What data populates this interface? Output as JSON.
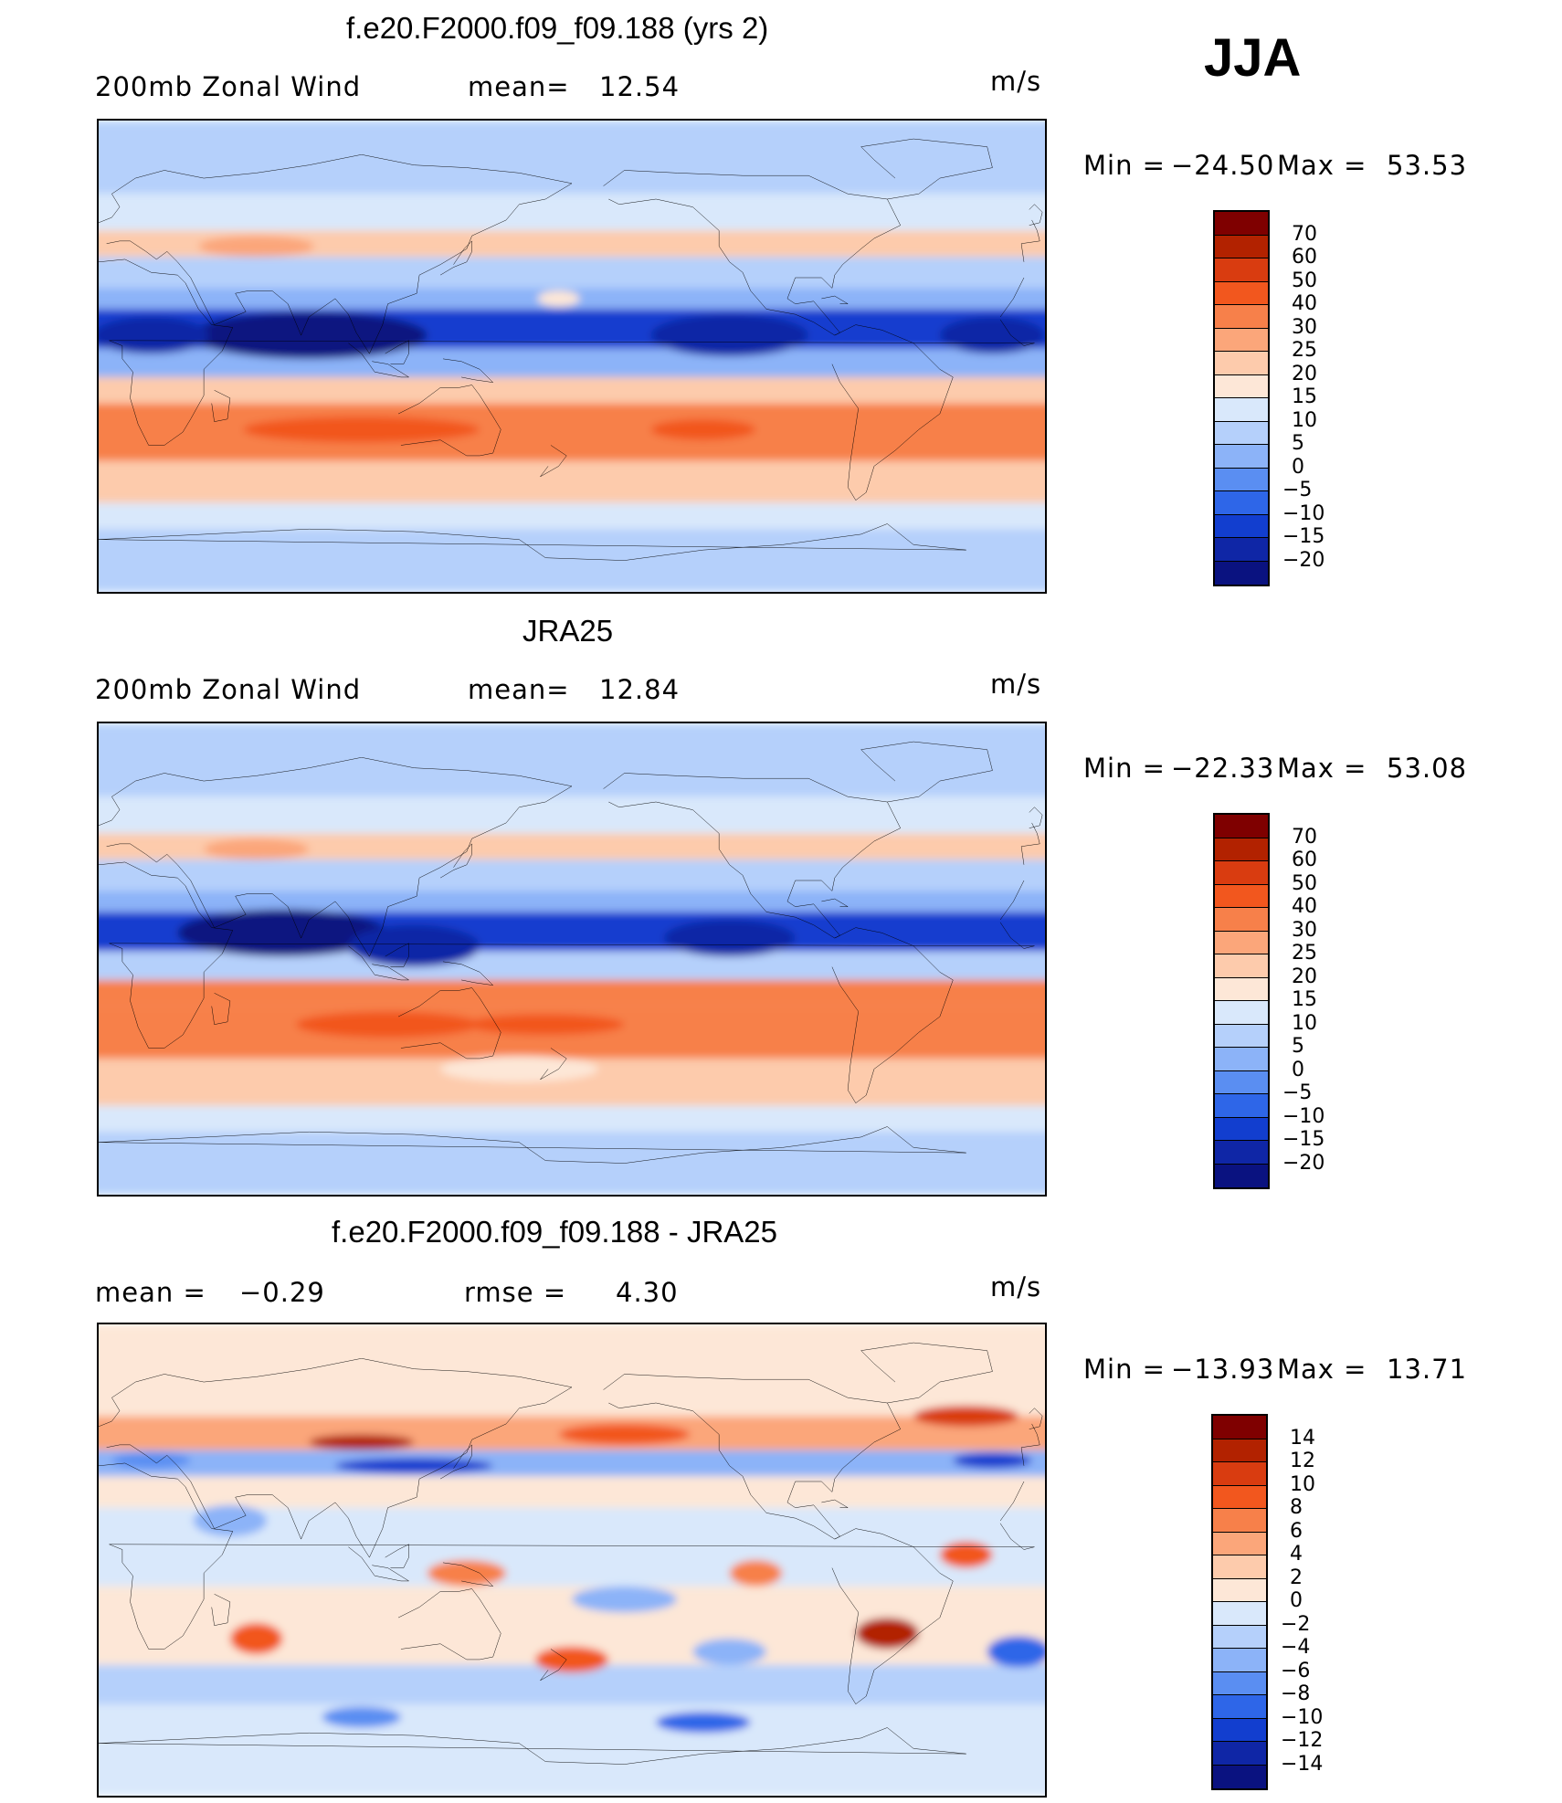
{
  "season": "JJA",
  "units": "m/s",
  "panels": [
    {
      "id": "model",
      "title": "f.e20.F2000.f09_f09.188 (yrs 2)",
      "left_label": "200mb  Zonal  Wind",
      "stat_label": "mean=",
      "stat_value": "12.54",
      "minmax": {
        "min_label": "Min  =",
        "min": "−24.50",
        "max_label": "Max  =",
        "max": "53.53"
      },
      "colorbar": {
        "levels": [
          "70",
          "60",
          "50",
          "40",
          "30",
          "25",
          "20",
          "15",
          "10",
          "5",
          "0",
          "−5",
          "−10",
          "−15",
          "−20"
        ],
        "colors": [
          "#7f0000",
          "#b22200",
          "#d93c10",
          "#f2571e",
          "#f7804a",
          "#fba67a",
          "#fdcbac",
          "#fde7d7",
          "#d9e8fb",
          "#b5d0fb",
          "#8cb3f8",
          "#5a8ef2",
          "#2e66e8",
          "#123ecf",
          "#0f26a6",
          "#0a1280"
        ]
      },
      "field": {
        "type": "zonal_wind",
        "bands": [
          {
            "lat_from": 90,
            "lat_to": 62,
            "value": 8
          },
          {
            "lat_from": 62,
            "lat_to": 48,
            "value": 12
          },
          {
            "lat_from": 48,
            "lat_to": 38,
            "value": 23
          },
          {
            "lat_from": 38,
            "lat_to": 26,
            "value": 9
          },
          {
            "lat_from": 26,
            "lat_to": 18,
            "value": 0
          },
          {
            "lat_from": 18,
            "lat_to": 3,
            "value": -12
          },
          {
            "lat_from": 3,
            "lat_to": -8,
            "value": 4
          },
          {
            "lat_from": -8,
            "lat_to": -18,
            "value": 24
          },
          {
            "lat_from": -18,
            "lat_to": -40,
            "value": 38
          },
          {
            "lat_from": -40,
            "lat_to": -56,
            "value": 23
          },
          {
            "lat_from": -56,
            "lat_to": -66,
            "value": 12
          },
          {
            "lat_from": -66,
            "lat_to": -90,
            "value": 6
          }
        ],
        "features": [
          {
            "lon": 80,
            "lat": 8,
            "rx": 45,
            "ry": 9,
            "value": -22
          },
          {
            "lon": 20,
            "lat": 8,
            "rx": 22,
            "ry": 7,
            "value": -16
          },
          {
            "lon": 240,
            "lat": 8,
            "rx": 30,
            "ry": 8,
            "value": -18
          },
          {
            "lon": 340,
            "lat": 8,
            "rx": 20,
            "ry": 7,
            "value": -18
          },
          {
            "lon": 100,
            "lat": -28,
            "rx": 45,
            "ry": 5,
            "value": 45
          },
          {
            "lon": 230,
            "lat": -28,
            "rx": 20,
            "ry": 4,
            "value": 45
          },
          {
            "lon": 60,
            "lat": 42,
            "rx": 22,
            "ry": 4,
            "value": 28
          },
          {
            "lon": 175,
            "lat": 22,
            "rx": 8,
            "ry": 3,
            "value": 18
          }
        ]
      }
    },
    {
      "id": "obs",
      "title": "JRA25",
      "left_label": "200mb  Zonal  Wind",
      "stat_label": "mean=",
      "stat_value": "12.84",
      "minmax": {
        "min_label": "Min  =",
        "min": "−22.33",
        "max_label": "Max  =",
        "max": "53.08"
      },
      "colorbar": {
        "levels": [
          "70",
          "60",
          "50",
          "40",
          "30",
          "25",
          "20",
          "15",
          "10",
          "5",
          "0",
          "−5",
          "−10",
          "−15",
          "−20"
        ],
        "colors": [
          "#7f0000",
          "#b22200",
          "#d93c10",
          "#f2571e",
          "#f7804a",
          "#fba67a",
          "#fdcbac",
          "#fde7d7",
          "#d9e8fb",
          "#b5d0fb",
          "#8cb3f8",
          "#5a8ef2",
          "#2e66e8",
          "#123ecf",
          "#0f26a6",
          "#0a1280"
        ]
      },
      "field": {
        "type": "zonal_wind",
        "bands": [
          {
            "lat_from": 90,
            "lat_to": 62,
            "value": 7
          },
          {
            "lat_from": 62,
            "lat_to": 48,
            "value": 10
          },
          {
            "lat_from": 48,
            "lat_to": 38,
            "value": 20
          },
          {
            "lat_from": 38,
            "lat_to": 26,
            "value": 9
          },
          {
            "lat_from": 26,
            "lat_to": 18,
            "value": 1
          },
          {
            "lat_from": 18,
            "lat_to": 3,
            "value": -12
          },
          {
            "lat_from": 3,
            "lat_to": -8,
            "value": 6
          },
          {
            "lat_from": -8,
            "lat_to": -18,
            "value": 32
          },
          {
            "lat_from": -18,
            "lat_to": -38,
            "value": 36
          },
          {
            "lat_from": -38,
            "lat_to": -56,
            "value": 24
          },
          {
            "lat_from": -56,
            "lat_to": -66,
            "value": 12
          },
          {
            "lat_from": -66,
            "lat_to": -90,
            "value": 6
          }
        ],
        "features": [
          {
            "lon": 70,
            "lat": 10,
            "rx": 40,
            "ry": 9,
            "value": -21
          },
          {
            "lon": 120,
            "lat": 5,
            "rx": 25,
            "ry": 8,
            "value": -17
          },
          {
            "lon": 240,
            "lat": 8,
            "rx": 25,
            "ry": 7,
            "value": -16
          },
          {
            "lon": 110,
            "lat": -25,
            "rx": 35,
            "ry": 5,
            "value": 45
          },
          {
            "lon": 170,
            "lat": -25,
            "rx": 30,
            "ry": 4,
            "value": 45
          },
          {
            "lon": 160,
            "lat": -42,
            "rx": 30,
            "ry": 5,
            "value": 18
          },
          {
            "lon": 300,
            "lat": 44,
            "rx": 18,
            "ry": 4,
            "value": 22
          },
          {
            "lon": 60,
            "lat": 42,
            "rx": 20,
            "ry": 4,
            "value": 25
          }
        ]
      }
    },
    {
      "id": "diff",
      "title": "f.e20.F2000.f09_f09.188 - JRA25",
      "left_label": "mean  =",
      "left_value": "−0.29",
      "stat_label": "rmse  =",
      "stat_value": "4.30",
      "minmax": {
        "min_label": "Min  =",
        "min": "−13.93",
        "max_label": "Max  =",
        "max": "13.71"
      },
      "colorbar": {
        "levels": [
          "14",
          "12",
          "10",
          "8",
          "6",
          "4",
          "2",
          "0",
          "−2",
          "−4",
          "−6",
          "−8",
          "−10",
          "−12",
          "−14"
        ],
        "colors": [
          "#7f0000",
          "#b22200",
          "#d93c10",
          "#f2571e",
          "#f7804a",
          "#fba67a",
          "#fdcbac",
          "#fde7d7",
          "#d9e8fb",
          "#b5d0fb",
          "#8cb3f8",
          "#5a8ef2",
          "#2e66e8",
          "#123ecf",
          "#0f26a6",
          "#0a1280"
        ]
      },
      "field": {
        "type": "difference",
        "bands": [
          {
            "lat_from": 90,
            "lat_to": 55,
            "value": 1
          },
          {
            "lat_from": 55,
            "lat_to": 42,
            "value": 4
          },
          {
            "lat_from": 42,
            "lat_to": 32,
            "value": -5
          },
          {
            "lat_from": 32,
            "lat_to": 20,
            "value": 0
          },
          {
            "lat_from": 20,
            "lat_to": -10,
            "value": -1
          },
          {
            "lat_from": -10,
            "lat_to": -40,
            "value": 1
          },
          {
            "lat_from": -40,
            "lat_to": -55,
            "value": -3
          },
          {
            "lat_from": -55,
            "lat_to": -90,
            "value": -1
          }
        ],
        "features": [
          {
            "lon": 100,
            "lat": 45,
            "rx": 20,
            "ry": 3,
            "value": 12
          },
          {
            "lon": 200,
            "lat": 48,
            "rx": 25,
            "ry": 4,
            "value": 9
          },
          {
            "lon": 330,
            "lat": 55,
            "rx": 20,
            "ry": 4,
            "value": 11
          },
          {
            "lon": 120,
            "lat": 36,
            "rx": 30,
            "ry": 3,
            "value": -12
          },
          {
            "lon": 340,
            "lat": 38,
            "rx": 15,
            "ry": 3,
            "value": -12
          },
          {
            "lon": 20,
            "lat": 38,
            "rx": 15,
            "ry": 3,
            "value": -8
          },
          {
            "lon": 300,
            "lat": -28,
            "rx": 12,
            "ry": 6,
            "value": 12
          },
          {
            "lon": 180,
            "lat": -38,
            "rx": 14,
            "ry": 5,
            "value": 9
          },
          {
            "lon": 250,
            "lat": -5,
            "rx": 10,
            "ry": 5,
            "value": 6
          },
          {
            "lon": 60,
            "lat": -30,
            "rx": 10,
            "ry": 6,
            "value": 8
          },
          {
            "lon": 330,
            "lat": 2,
            "rx": 10,
            "ry": 5,
            "value": 8
          },
          {
            "lon": 350,
            "lat": -35,
            "rx": 12,
            "ry": 6,
            "value": -10
          },
          {
            "lon": 240,
            "lat": -35,
            "rx": 14,
            "ry": 5,
            "value": -6
          },
          {
            "lon": 230,
            "lat": -62,
            "rx": 18,
            "ry": 4,
            "value": -9
          },
          {
            "lon": 100,
            "lat": -60,
            "rx": 15,
            "ry": 4,
            "value": -7
          },
          {
            "lon": 140,
            "lat": -5,
            "rx": 15,
            "ry": 5,
            "value": 6
          },
          {
            "lon": 200,
            "lat": -15,
            "rx": 20,
            "ry": 5,
            "value": -6
          },
          {
            "lon": 50,
            "lat": 15,
            "rx": 14,
            "ry": 6,
            "value": -5
          }
        ]
      }
    }
  ]
}
